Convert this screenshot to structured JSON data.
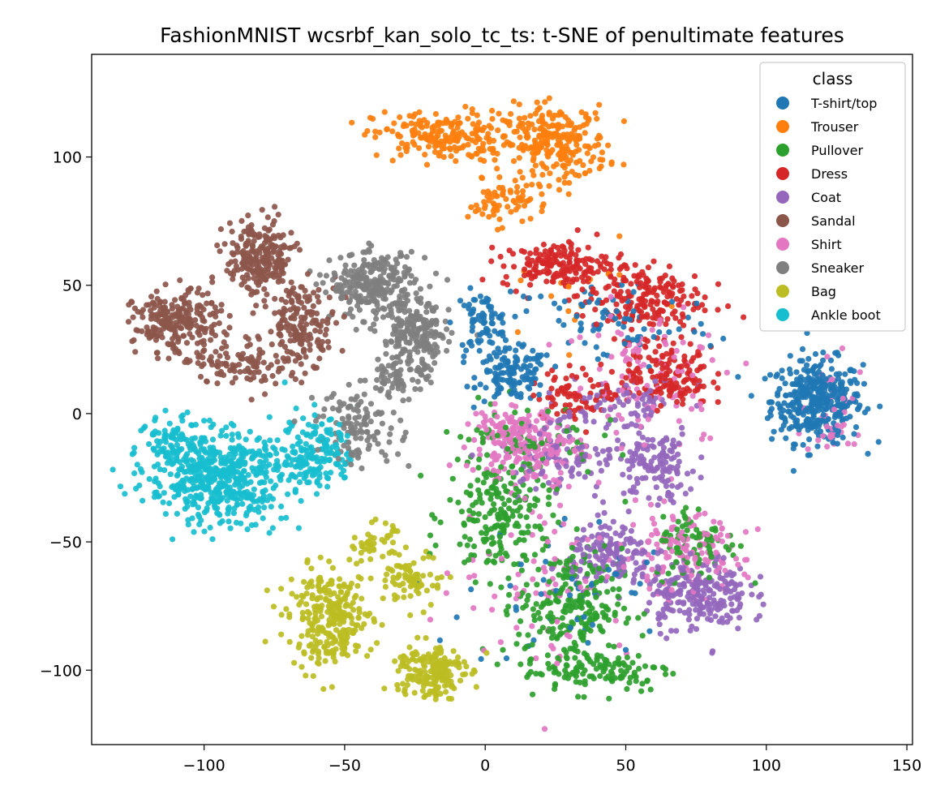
{
  "chart_data": {
    "type": "scatter",
    "title": "FashionMNIST wcsrbf_kan_solo_tc_ts: t-SNE of penultimate features",
    "xlabel": "",
    "ylabel": "",
    "xlim": [
      -140,
      152
    ],
    "ylim": [
      -129,
      140
    ],
    "x_ticks": [
      -100,
      -50,
      0,
      50,
      100,
      150
    ],
    "y_ticks": [
      -100,
      -50,
      0,
      50,
      100
    ],
    "x_tick_labels": [
      "−100",
      "−50",
      "0",
      "50",
      "100",
      "150"
    ],
    "y_tick_labels": [
      "−100",
      "−50",
      "0",
      "50",
      "100"
    ],
    "grid": false,
    "legend": {
      "title": "class",
      "position": "top-right"
    },
    "series": [
      {
        "name": "T-shirt/top",
        "color": "#1f77b4",
        "clusters": [
          [
            118,
            5,
            13,
            13,
            380
          ],
          [
            10,
            15,
            10,
            8,
            120
          ],
          [
            -1,
            35,
            8,
            10,
            80
          ],
          [
            45,
            35,
            30,
            15,
            80
          ],
          [
            30,
            -70,
            30,
            25,
            50
          ]
        ]
      },
      {
        "name": "Trouser",
        "color": "#ff7f0e",
        "clusters": [
          [
            -15,
            108,
            20,
            8,
            200
          ],
          [
            25,
            105,
            15,
            12,
            250
          ],
          [
            5,
            82,
            9,
            7,
            60
          ],
          [
            30,
            45,
            25,
            15,
            15
          ]
        ]
      },
      {
        "name": "Pullover",
        "color": "#2ca02c",
        "clusters": [
          [
            5,
            -40,
            15,
            20,
            200
          ],
          [
            30,
            -75,
            15,
            18,
            220
          ],
          [
            40,
            -100,
            22,
            7,
            120
          ],
          [
            75,
            -50,
            12,
            12,
            80
          ],
          [
            15,
            -10,
            20,
            12,
            60
          ]
        ]
      },
      {
        "name": "Dress",
        "color": "#d62728",
        "clusters": [
          [
            25,
            58,
            15,
            7,
            160
          ],
          [
            55,
            45,
            18,
            12,
            200
          ],
          [
            65,
            15,
            12,
            10,
            140
          ],
          [
            35,
            8,
            15,
            8,
            80
          ]
        ]
      },
      {
        "name": "Coat",
        "color": "#9467bd",
        "clusters": [
          [
            75,
            -70,
            15,
            12,
            240
          ],
          [
            45,
            -55,
            12,
            10,
            140
          ],
          [
            60,
            -20,
            12,
            12,
            120
          ],
          [
            30,
            -15,
            20,
            12,
            100
          ],
          [
            50,
            5,
            18,
            7,
            60
          ]
        ]
      },
      {
        "name": "Sandal",
        "color": "#8c564b",
        "clusters": [
          [
            -80,
            60,
            10,
            12,
            240
          ],
          [
            -110,
            35,
            12,
            10,
            230
          ],
          [
            -65,
            35,
            10,
            12,
            160
          ],
          [
            -85,
            20,
            15,
            8,
            100
          ]
        ]
      },
      {
        "name": "Shirt",
        "color": "#e377c2",
        "clusters": [
          [
            15,
            -15,
            15,
            10,
            160
          ],
          [
            70,
            -55,
            18,
            12,
            140
          ],
          [
            10,
            -5,
            12,
            6,
            80
          ],
          [
            60,
            15,
            25,
            25,
            100
          ],
          [
            20,
            -60,
            25,
            30,
            80
          ],
          [
            125,
            0,
            10,
            15,
            40
          ]
        ]
      },
      {
        "name": "Sneaker",
        "color": "#7f7f7f",
        "clusters": [
          [
            -40,
            50,
            12,
            10,
            260
          ],
          [
            -25,
            30,
            10,
            12,
            200
          ],
          [
            -45,
            -5,
            12,
            12,
            120
          ],
          [
            -30,
            15,
            8,
            8,
            60
          ]
        ]
      },
      {
        "name": "Bag",
        "color": "#bcbd22",
        "clusters": [
          [
            -55,
            -80,
            12,
            15,
            280
          ],
          [
            -20,
            -100,
            10,
            9,
            180
          ],
          [
            -25,
            -65,
            8,
            8,
            80
          ],
          [
            -40,
            -50,
            6,
            6,
            40
          ]
        ]
      },
      {
        "name": "Ankle boot",
        "color": "#17becf",
        "clusters": [
          [
            -95,
            -25,
            20,
            14,
            520
          ],
          [
            -60,
            -15,
            10,
            12,
            160
          ],
          [
            -110,
            -10,
            8,
            8,
            80
          ]
        ]
      }
    ]
  }
}
